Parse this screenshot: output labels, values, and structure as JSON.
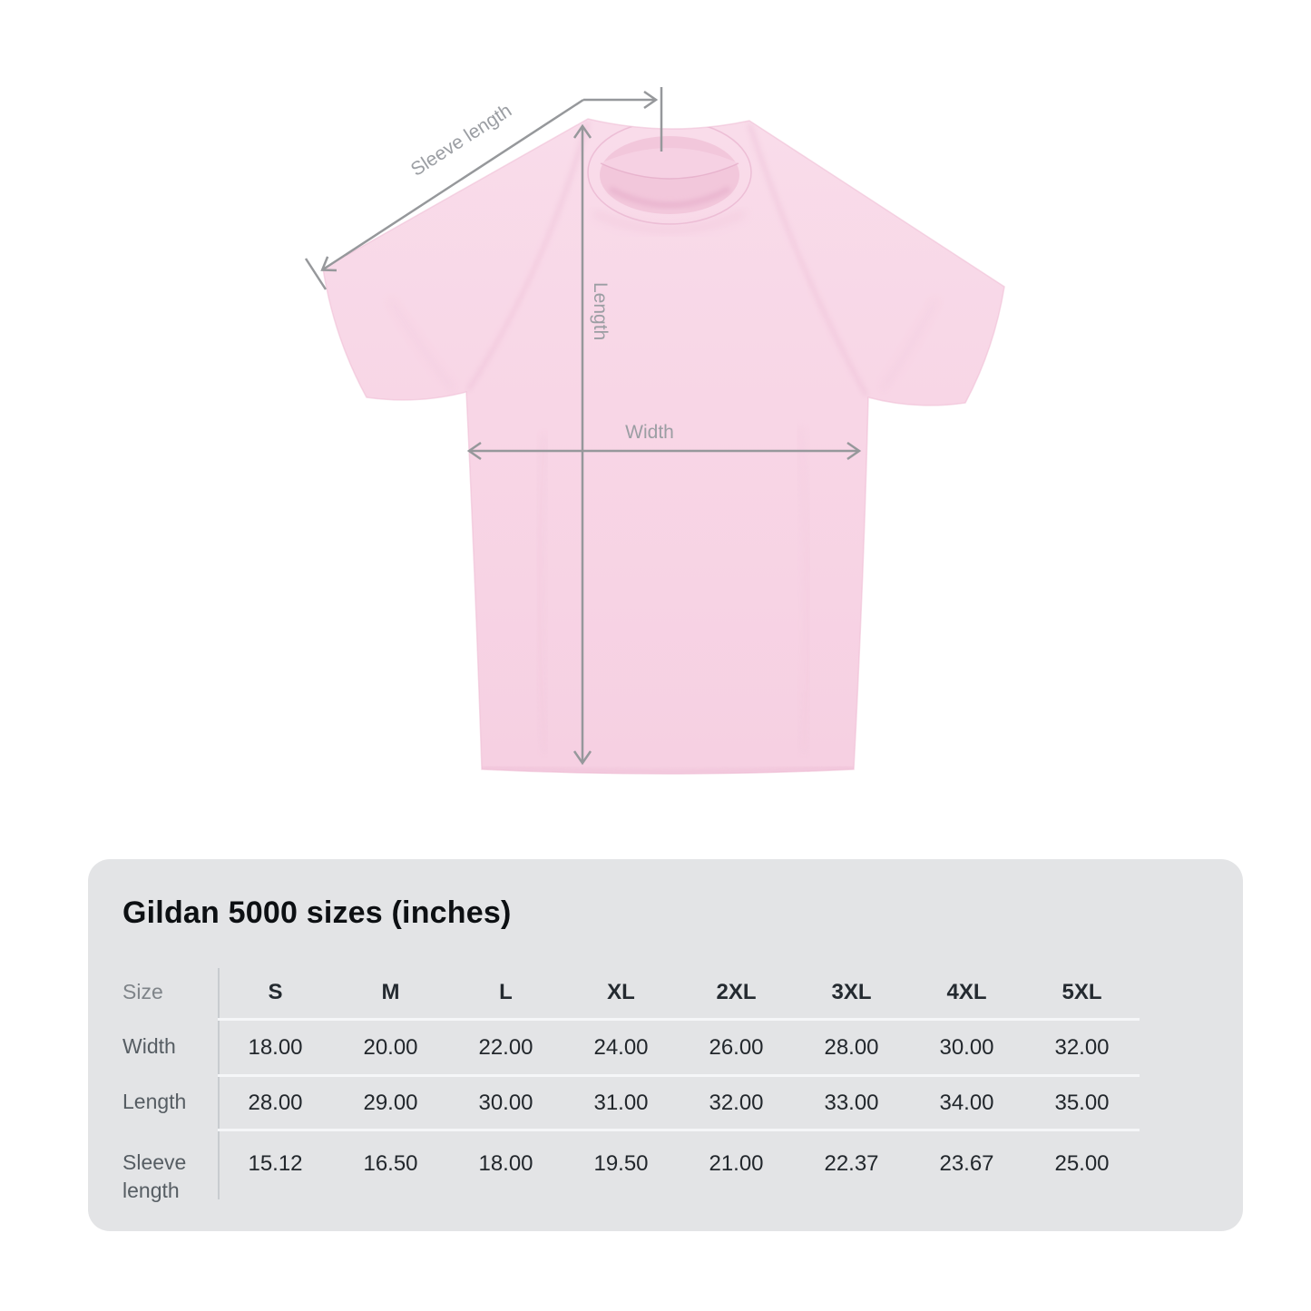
{
  "diagram": {
    "labels": {
      "sleeve_length": "Sleeve length",
      "length": "Length",
      "width": "Width"
    },
    "colors": {
      "shirt_pink": "#f8d8e7",
      "shirt_fold": "#efc3d9",
      "arrow_gray": "#96989b",
      "label_gray": "#9b9ea3"
    }
  },
  "size_chart": {
    "title": "Gildan 5000 sizes (inches)",
    "corner_label": "Size",
    "columns": [
      "S",
      "M",
      "L",
      "XL",
      "2XL",
      "3XL",
      "4XL",
      "5XL"
    ],
    "rows": [
      {
        "label": "Width",
        "values": [
          "18.00",
          "20.00",
          "22.00",
          "24.00",
          "26.00",
          "28.00",
          "30.00",
          "32.00"
        ]
      },
      {
        "label": "Length",
        "values": [
          "28.00",
          "29.00",
          "30.00",
          "31.00",
          "32.00",
          "33.00",
          "34.00",
          "35.00"
        ]
      },
      {
        "label": "Sleeve length",
        "values": [
          "15.12",
          "16.50",
          "18.00",
          "19.50",
          "21.00",
          "22.37",
          "23.67",
          "25.00"
        ]
      }
    ],
    "colors": {
      "card_background": "#e3e4e6",
      "header_text": "#242a30",
      "value_text": "#22272c",
      "row_label_text": "#565d63",
      "divider": "#c8ccd0",
      "row_separator": "#f5f6f8"
    }
  },
  "chart_data": {
    "type": "table",
    "title": "Gildan 5000 sizes (inches)",
    "unit": "inches",
    "columns": [
      "S",
      "M",
      "L",
      "XL",
      "2XL",
      "3XL",
      "4XL",
      "5XL"
    ],
    "series": [
      {
        "name": "Width",
        "values": [
          18.0,
          20.0,
          22.0,
          24.0,
          26.0,
          28.0,
          30.0,
          32.0
        ]
      },
      {
        "name": "Length",
        "values": [
          28.0,
          29.0,
          30.0,
          31.0,
          32.0,
          33.0,
          34.0,
          35.0
        ]
      },
      {
        "name": "Sleeve length",
        "values": [
          15.12,
          16.5,
          18.0,
          19.5,
          21.0,
          22.37,
          23.67,
          25.0
        ]
      }
    ]
  }
}
